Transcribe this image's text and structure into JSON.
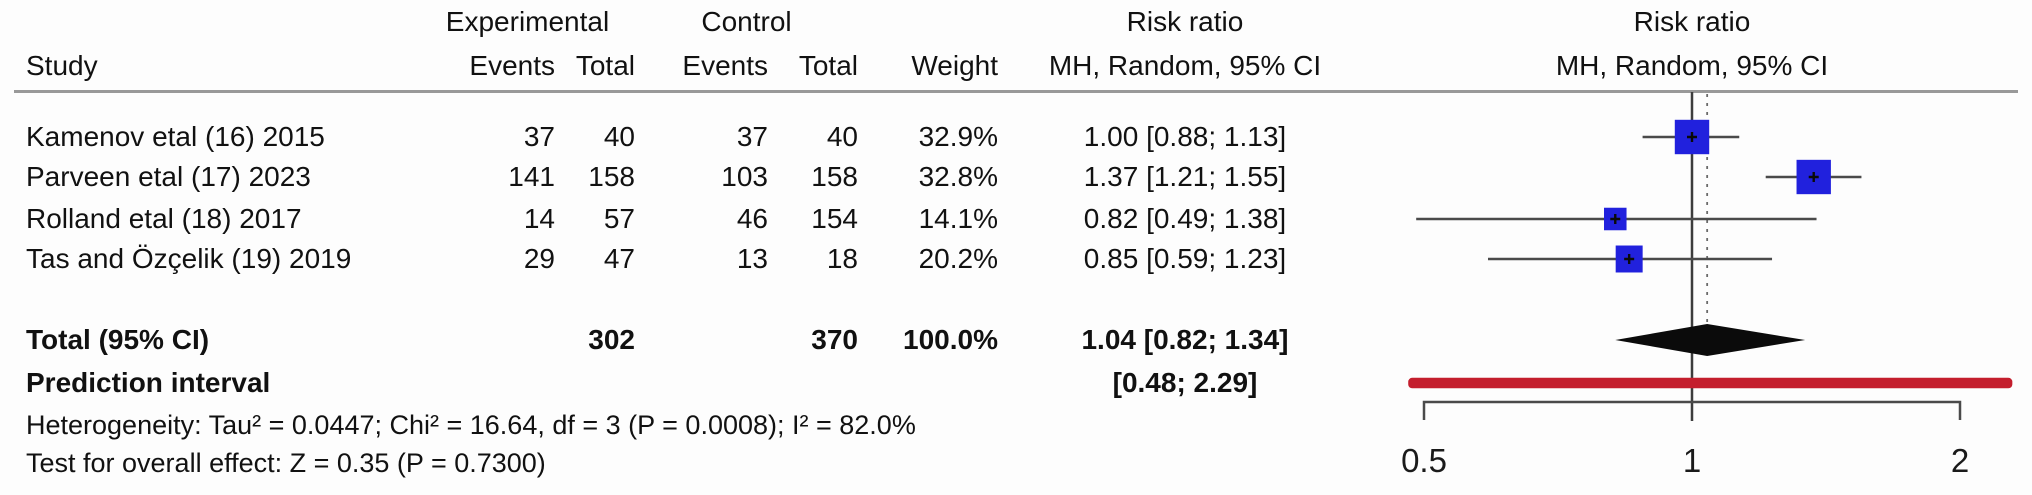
{
  "table": {
    "headers": {
      "study": "Study",
      "experimental_group": "Experimental",
      "control_group": "Control",
      "exp_events": "Events",
      "exp_total": "Total",
      "ctrl_events": "Events",
      "ctrl_total": "Total",
      "weight": "Weight",
      "risk_ratio_line1": "Risk ratio",
      "risk_ratio_line2": "MH, Random, 95% CI"
    },
    "plot_header": {
      "line1": "Risk ratio",
      "line2": "MH, Random, 95% CI"
    },
    "rows": [
      {
        "study": "Kamenov etal (16) 2015",
        "exp_events": "37",
        "exp_total": "40",
        "ctrl_events": "37",
        "ctrl_total": "40",
        "weight": "32.9%",
        "rr_text": "1.00 [0.88; 1.13]"
      },
      {
        "study": "Parveen etal (17) 2023",
        "exp_events": "141",
        "exp_total": "158",
        "ctrl_events": "103",
        "ctrl_total": "158",
        "weight": "32.8%",
        "rr_text": "1.37 [1.21; 1.55]"
      },
      {
        "study": "Rolland etal (18) 2017",
        "exp_events": "14",
        "exp_total": "57",
        "ctrl_events": "46",
        "ctrl_total": "154",
        "weight": "14.1%",
        "rr_text": "0.82 [0.49; 1.38]"
      },
      {
        "study": "Tas and Özçelik (19) 2019",
        "exp_events": "29",
        "exp_total": "47",
        "ctrl_events": "13",
        "ctrl_total": "18",
        "weight": "20.2%",
        "rr_text": "0.85 [0.59; 1.23]"
      }
    ],
    "total_row": {
      "label": "Total (95% CI)",
      "exp_total": "302",
      "ctrl_total": "370",
      "weight": "100.0%",
      "rr_text": "1.04 [0.82; 1.34]"
    },
    "prediction_row": {
      "label": "Prediction interval",
      "rr_text": "[0.48; 2.29]"
    },
    "footnotes": {
      "heterogeneity": "Heterogeneity: Tau² = 0.0447; Chi² = 16.64, df = 3 (P = 0.0008); I² = 82.0%",
      "overall_effect": "Test for overall effect: Z = 0.35 (P = 0.7300)"
    }
  },
  "chart_data": {
    "type": "forest",
    "effect_measure": "Risk ratio (MH, Random, 95% CI)",
    "x_axis": {
      "scale": "log",
      "ticks": [
        0.5,
        1,
        2
      ],
      "tick_labels": [
        "0.5",
        "1",
        "2"
      ],
      "range": [
        0.5,
        2
      ]
    },
    "reference_line": 1,
    "studies": [
      {
        "name": "Kamenov etal (16) 2015",
        "rr": 1.0,
        "ci_low": 0.88,
        "ci_high": 1.13,
        "weight_pct": 32.9
      },
      {
        "name": "Parveen etal (17) 2023",
        "rr": 1.37,
        "ci_low": 1.21,
        "ci_high": 1.55,
        "weight_pct": 32.8
      },
      {
        "name": "Rolland etal (18) 2017",
        "rr": 0.82,
        "ci_low": 0.49,
        "ci_high": 1.38,
        "weight_pct": 14.1
      },
      {
        "name": "Tas and Özçelik (19) 2019",
        "rr": 0.85,
        "ci_low": 0.59,
        "ci_high": 1.23,
        "weight_pct": 20.2
      }
    ],
    "overall": {
      "label": "Total (95% CI)",
      "rr": 1.04,
      "ci_low": 0.82,
      "ci_high": 1.34
    },
    "prediction_interval": {
      "low": 0.48,
      "high": 2.29
    },
    "heterogeneity": {
      "tau2": 0.0447,
      "chi2": 16.64,
      "df": 3,
      "p": 0.0008,
      "i2_pct": 82.0
    },
    "overall_test": {
      "z": 0.35,
      "p": 0.73
    },
    "colors": {
      "square": "#2121dd",
      "diamond": "#0b0b0b",
      "prediction_bar": "#c41e2d",
      "line": "#4a4a4a"
    }
  }
}
